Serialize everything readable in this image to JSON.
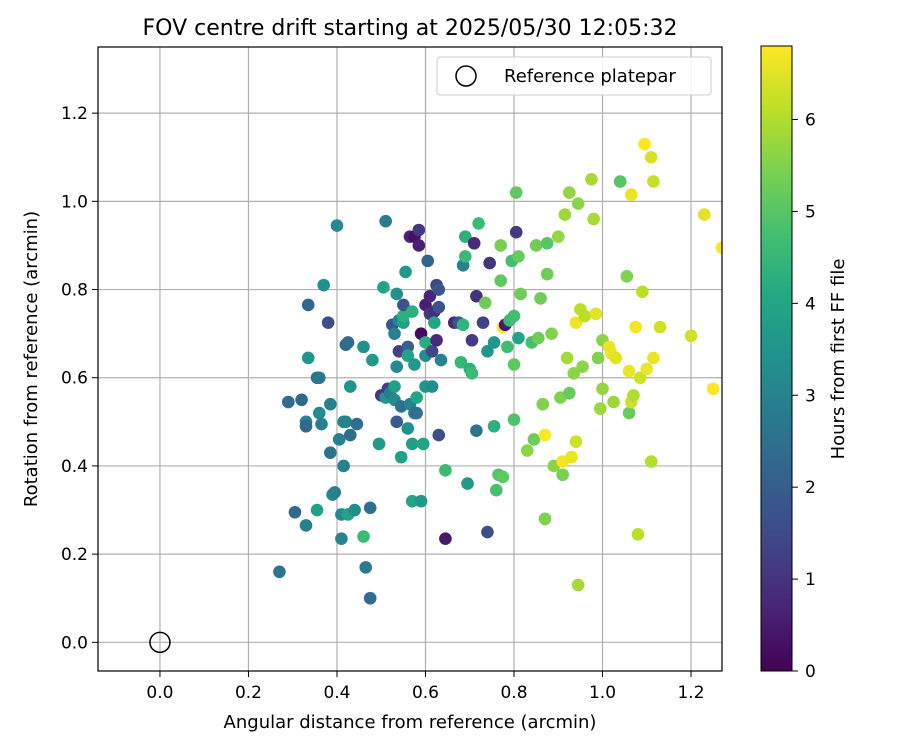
{
  "chart_data": {
    "type": "scatter",
    "title": "FOV centre drift starting at 2025/05/30 12:05:32",
    "xlabel": "Angular distance from reference (arcmin)",
    "ylabel": "Rotation from reference (arcmin)",
    "xlim": [
      -0.14,
      1.27
    ],
    "ylim": [
      -0.065,
      1.35
    ],
    "xticks": [
      "0.0",
      "0.2",
      "0.4",
      "0.6",
      "0.8",
      "1.0",
      "1.2"
    ],
    "yticks": [
      "0.0",
      "0.2",
      "0.4",
      "0.6",
      "0.8",
      "1.0",
      "1.2"
    ],
    "grid": true,
    "legend": {
      "position": "top-right",
      "entries": [
        "Reference platepar"
      ]
    },
    "reference_point": {
      "x": 0.0,
      "y": 0.0,
      "marker": "open-circle"
    },
    "colorbar": {
      "label": "Hours from first FF file",
      "range": [
        0,
        6.8
      ],
      "ticks": [
        "0",
        "1",
        "2",
        "3",
        "4",
        "5",
        "6"
      ],
      "colormap": "viridis"
    },
    "points": [
      [
        0.27,
        0.16,
        2.6
      ],
      [
        0.29,
        0.545,
        2.4
      ],
      [
        0.305,
        0.295,
        2.3
      ],
      [
        0.32,
        0.55,
        2.3
      ],
      [
        0.33,
        0.5,
        3.0
      ],
      [
        0.33,
        0.49,
        2.3
      ],
      [
        0.33,
        0.265,
        2.9
      ],
      [
        0.335,
        0.765,
        2.2
      ],
      [
        0.335,
        0.645,
        3.5
      ],
      [
        0.355,
        0.3,
        3.8
      ],
      [
        0.355,
        0.6,
        2.5
      ],
      [
        0.36,
        0.6,
        2.7
      ],
      [
        0.36,
        0.52,
        3.3
      ],
      [
        0.365,
        0.495,
        2.9
      ],
      [
        0.37,
        0.81,
        3.4
      ],
      [
        0.38,
        0.725,
        1.6
      ],
      [
        0.385,
        0.43,
        2.6
      ],
      [
        0.385,
        0.54,
        3.0
      ],
      [
        0.39,
        0.335,
        3.2
      ],
      [
        0.395,
        0.34,
        2.9
      ],
      [
        0.4,
        0.945,
        3.2
      ],
      [
        0.405,
        0.46,
        3.0
      ],
      [
        0.41,
        0.29,
        3.2
      ],
      [
        0.41,
        0.235,
        3.1
      ],
      [
        0.415,
        0.4,
        3.0
      ],
      [
        0.415,
        0.5,
        3.1
      ],
      [
        0.42,
        0.675,
        2.3
      ],
      [
        0.42,
        0.5,
        3.0
      ],
      [
        0.425,
        0.29,
        3.9
      ],
      [
        0.425,
        0.68,
        2.4
      ],
      [
        0.43,
        0.47,
        2.4
      ],
      [
        0.43,
        0.58,
        3.5
      ],
      [
        0.44,
        0.3,
        3.3
      ],
      [
        0.445,
        0.495,
        2.5
      ],
      [
        0.46,
        0.67,
        3.4
      ],
      [
        0.46,
        0.24,
        4.6
      ],
      [
        0.465,
        0.17,
        2.8
      ],
      [
        0.475,
        0.305,
        2.5
      ],
      [
        0.475,
        0.1,
        2.4
      ],
      [
        0.48,
        0.64,
        3.6
      ],
      [
        0.495,
        0.45,
        3.7
      ],
      [
        0.5,
        0.56,
        1.1
      ],
      [
        0.505,
        0.805,
        4.0
      ],
      [
        0.51,
        0.555,
        3.5
      ],
      [
        0.51,
        0.955,
        2.8
      ],
      [
        0.515,
        0.575,
        1.3
      ],
      [
        0.52,
        0.565,
        2.8
      ],
      [
        0.525,
        0.72,
        1.8
      ],
      [
        0.53,
        0.55,
        3.2
      ],
      [
        0.53,
        0.58,
        3.8
      ],
      [
        0.53,
        0.7,
        3.0
      ],
      [
        0.535,
        0.625,
        3.3
      ],
      [
        0.535,
        0.5,
        2.0
      ],
      [
        0.535,
        0.79,
        3.4
      ],
      [
        0.54,
        0.73,
        3.0
      ],
      [
        0.54,
        0.66,
        1.3
      ],
      [
        0.545,
        0.42,
        3.8
      ],
      [
        0.545,
        0.535,
        2.5
      ],
      [
        0.55,
        0.725,
        3.9
      ],
      [
        0.55,
        0.74,
        4.3
      ],
      [
        0.55,
        0.765,
        1.8
      ],
      [
        0.555,
        0.84,
        3.7
      ],
      [
        0.56,
        0.67,
        2.1
      ],
      [
        0.56,
        0.485,
        3.4
      ],
      [
        0.56,
        0.65,
        3.9
      ],
      [
        0.565,
        0.92,
        0.7
      ],
      [
        0.565,
        0.54,
        3.0
      ],
      [
        0.57,
        0.45,
        3.8
      ],
      [
        0.57,
        0.75,
        4.3
      ],
      [
        0.57,
        0.32,
        4.0
      ],
      [
        0.575,
        0.52,
        2.8
      ],
      [
        0.575,
        0.63,
        3.7
      ],
      [
        0.575,
        0.92,
        0.3
      ],
      [
        0.58,
        0.52,
        2.5
      ],
      [
        0.58,
        0.555,
        4.0
      ],
      [
        0.585,
        0.935,
        1.1
      ],
      [
        0.585,
        0.9,
        0.6
      ],
      [
        0.59,
        0.7,
        0.2
      ],
      [
        0.59,
        0.32,
        3.6
      ],
      [
        0.595,
        0.45,
        4.0
      ],
      [
        0.6,
        0.68,
        4.2
      ],
      [
        0.6,
        0.765,
        0.6
      ],
      [
        0.6,
        0.65,
        3.3
      ],
      [
        0.6,
        0.58,
        3.6
      ],
      [
        0.605,
        0.865,
        2.2
      ],
      [
        0.61,
        0.785,
        0.7
      ],
      [
        0.61,
        0.745,
        1.1
      ],
      [
        0.615,
        0.66,
        1.4
      ],
      [
        0.615,
        0.58,
        3.3
      ],
      [
        0.62,
        0.75,
        0.9
      ],
      [
        0.62,
        0.725,
        4.0
      ],
      [
        0.625,
        0.685,
        0.8
      ],
      [
        0.625,
        0.81,
        1.4
      ],
      [
        0.63,
        0.8,
        1.8
      ],
      [
        0.63,
        0.76,
        1.7
      ],
      [
        0.63,
        0.47,
        1.6
      ],
      [
        0.635,
        0.64,
        3.0
      ],
      [
        0.645,
        0.39,
        4.6
      ],
      [
        0.645,
        0.235,
        0.5
      ],
      [
        0.665,
        0.725,
        0.8
      ],
      [
        0.675,
        0.725,
        1.8
      ],
      [
        0.68,
        0.635,
        4.5
      ],
      [
        0.685,
        0.855,
        3.0
      ],
      [
        0.685,
        0.72,
        4.4
      ],
      [
        0.69,
        0.92,
        4.3
      ],
      [
        0.69,
        0.875,
        4.6
      ],
      [
        0.695,
        0.36,
        3.6
      ],
      [
        0.7,
        0.62,
        4.3
      ],
      [
        0.705,
        0.685,
        1.2
      ],
      [
        0.705,
        0.61,
        4.6
      ],
      [
        0.71,
        0.905,
        0.8
      ],
      [
        0.715,
        0.785,
        1.0
      ],
      [
        0.715,
        0.48,
        2.6
      ],
      [
        0.72,
        0.95,
        4.6
      ],
      [
        0.73,
        0.725,
        1.3
      ],
      [
        0.735,
        0.77,
        5.3
      ],
      [
        0.74,
        0.66,
        3.5
      ],
      [
        0.74,
        0.25,
        1.6
      ],
      [
        0.745,
        0.86,
        1.0
      ],
      [
        0.755,
        0.68,
        3.6
      ],
      [
        0.755,
        0.49,
        4.3
      ],
      [
        0.76,
        0.345,
        4.8
      ],
      [
        0.765,
        0.38,
        5.0
      ],
      [
        0.77,
        0.82,
        5.1
      ],
      [
        0.77,
        0.9,
        5.4
      ],
      [
        0.775,
        0.715,
        6.8
      ],
      [
        0.775,
        0.375,
        5.1
      ],
      [
        0.78,
        0.72,
        0.5
      ],
      [
        0.785,
        0.67,
        4.7
      ],
      [
        0.79,
        0.73,
        4.6
      ],
      [
        0.795,
        0.865,
        4.7
      ],
      [
        0.8,
        0.74,
        4.7
      ],
      [
        0.8,
        0.505,
        4.9
      ],
      [
        0.8,
        0.63,
        5.1
      ],
      [
        0.805,
        0.93,
        1.1
      ],
      [
        0.805,
        1.02,
        5.1
      ],
      [
        0.81,
        0.875,
        5.2
      ],
      [
        0.81,
        0.69,
        4.0
      ],
      [
        0.815,
        0.79,
        5.3
      ],
      [
        0.83,
        0.435,
        5.6
      ],
      [
        0.84,
        0.68,
        4.8
      ],
      [
        0.845,
        0.46,
        5.3
      ],
      [
        0.85,
        0.9,
        5.3
      ],
      [
        0.855,
        0.69,
        5.3
      ],
      [
        0.86,
        0.78,
        5.3
      ],
      [
        0.865,
        0.54,
        5.5
      ],
      [
        0.87,
        0.47,
        6.8
      ],
      [
        0.87,
        0.28,
        5.5
      ],
      [
        0.875,
        0.905,
        5.0
      ],
      [
        0.875,
        0.835,
        5.3
      ],
      [
        0.885,
        0.7,
        5.5
      ],
      [
        0.89,
        0.4,
        5.6
      ],
      [
        0.9,
        0.92,
        5.7
      ],
      [
        0.905,
        0.555,
        5.5
      ],
      [
        0.91,
        0.41,
        6.7
      ],
      [
        0.91,
        0.38,
        5.4
      ],
      [
        0.915,
        0.97,
        5.8
      ],
      [
        0.92,
        0.645,
        5.9
      ],
      [
        0.925,
        0.565,
        5.2
      ],
      [
        0.925,
        1.02,
        5.7
      ],
      [
        0.93,
        0.42,
        6.6
      ],
      [
        0.935,
        0.61,
        5.6
      ],
      [
        0.94,
        0.725,
        6.6
      ],
      [
        0.94,
        0.455,
        6.3
      ],
      [
        0.945,
        0.995,
        5.6
      ],
      [
        0.945,
        0.13,
        5.9
      ],
      [
        0.95,
        0.755,
        6.1
      ],
      [
        0.955,
        0.625,
        5.6
      ],
      [
        0.96,
        0.74,
        6.1
      ],
      [
        0.975,
        1.05,
        5.9
      ],
      [
        0.98,
        0.96,
        5.9
      ],
      [
        0.985,
        0.745,
        6.5
      ],
      [
        0.99,
        0.645,
        5.5
      ],
      [
        0.995,
        0.53,
        5.8
      ],
      [
        1.0,
        0.685,
        5.6
      ],
      [
        1.0,
        0.575,
        5.7
      ],
      [
        1.015,
        0.67,
        6.6
      ],
      [
        1.02,
        0.655,
        6.6
      ],
      [
        1.025,
        0.545,
        5.8
      ],
      [
        1.03,
        0.645,
        6.5
      ],
      [
        1.04,
        1.045,
        5.0
      ],
      [
        1.055,
        0.83,
        5.5
      ],
      [
        1.06,
        0.615,
        6.6
      ],
      [
        1.06,
        0.52,
        5.2
      ],
      [
        1.065,
        1.015,
        6.6
      ],
      [
        1.065,
        0.545,
        6.3
      ],
      [
        1.07,
        0.56,
        6.0
      ],
      [
        1.075,
        0.715,
        6.7
      ],
      [
        1.08,
        0.245,
        6.1
      ],
      [
        1.085,
        0.6,
        6.3
      ],
      [
        1.09,
        0.795,
        6.1
      ],
      [
        1.095,
        1.13,
        6.8
      ],
      [
        1.1,
        0.62,
        6.6
      ],
      [
        1.11,
        0.41,
        6.0
      ],
      [
        1.11,
        1.1,
        6.4
      ],
      [
        1.115,
        0.645,
        6.6
      ],
      [
        1.115,
        1.045,
        6.2
      ],
      [
        1.13,
        0.715,
        6.3
      ],
      [
        1.2,
        0.695,
        6.3
      ],
      [
        1.23,
        0.97,
        6.5
      ],
      [
        1.25,
        0.575,
        6.8
      ],
      [
        1.27,
        0.895,
        6.9
      ]
    ]
  }
}
